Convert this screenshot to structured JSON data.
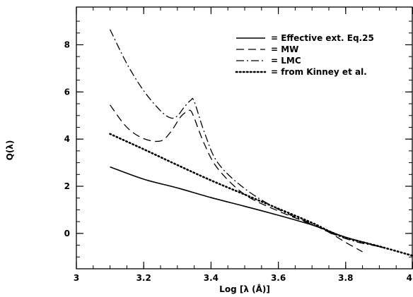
{
  "chart_data": {
    "type": "line",
    "title": "",
    "xlabel": "Log [λ (Å)]",
    "ylabel": "Q(λ)",
    "xlim": [
      3,
      4
    ],
    "ylim": [
      -1.5,
      9.6
    ],
    "x_ticks": [
      3,
      3.2,
      3.4,
      3.6,
      3.8,
      4
    ],
    "x_tick_labels": [
      "3",
      "3.2",
      "3.4",
      "3.6",
      "3.8",
      "4"
    ],
    "y_ticks": [
      0,
      2,
      4,
      6,
      8
    ],
    "y_tick_labels": [
      "0",
      "2",
      "4",
      "6",
      "8"
    ],
    "grid": false,
    "legend_position": "top-right",
    "series": [
      {
        "name": "= Effective ext. Eq.25",
        "style": "solid",
        "x": [
          3.1,
          3.2,
          3.3,
          3.4,
          3.5,
          3.6,
          3.7,
          3.75,
          3.8,
          3.91
        ],
        "y": [
          2.82,
          2.3,
          1.93,
          1.52,
          1.15,
          0.77,
          0.36,
          0.1,
          -0.16,
          -0.6
        ]
      },
      {
        "name": "= MW",
        "style": "dashed",
        "x": [
          3.1,
          3.15,
          3.2,
          3.25,
          3.28,
          3.31,
          3.33,
          3.34,
          3.35,
          3.38,
          3.42,
          3.5,
          3.6,
          3.7,
          3.75,
          3.8,
          3.85
        ],
        "y": [
          5.45,
          4.5,
          4.02,
          3.92,
          4.3,
          4.95,
          5.18,
          5.2,
          4.9,
          3.8,
          2.75,
          1.65,
          0.95,
          0.38,
          0.05,
          -0.38,
          -0.78
        ]
      },
      {
        "name": "= LMC",
        "style": "dash-dot",
        "x": [
          3.1,
          3.15,
          3.2,
          3.25,
          3.28,
          3.3,
          3.32,
          3.34,
          3.35,
          3.38,
          3.42,
          3.5,
          3.6,
          3.7,
          3.75,
          3.8,
          3.85,
          3.91
        ],
        "y": [
          8.65,
          7.2,
          6.05,
          5.2,
          4.9,
          4.98,
          5.35,
          5.65,
          5.6,
          4.3,
          3.0,
          1.9,
          1.02,
          0.4,
          0.05,
          -0.22,
          -0.42,
          -0.58
        ]
      },
      {
        "name": "= from Kinney et al.",
        "style": "dotted",
        "x": [
          3.1,
          3.2,
          3.3,
          3.4,
          3.5,
          3.6,
          3.7,
          3.75,
          3.8,
          3.9,
          4.0
        ],
        "y": [
          4.22,
          3.57,
          2.9,
          2.25,
          1.65,
          1.05,
          0.45,
          0.1,
          -0.18,
          -0.55,
          -0.95
        ]
      }
    ]
  }
}
